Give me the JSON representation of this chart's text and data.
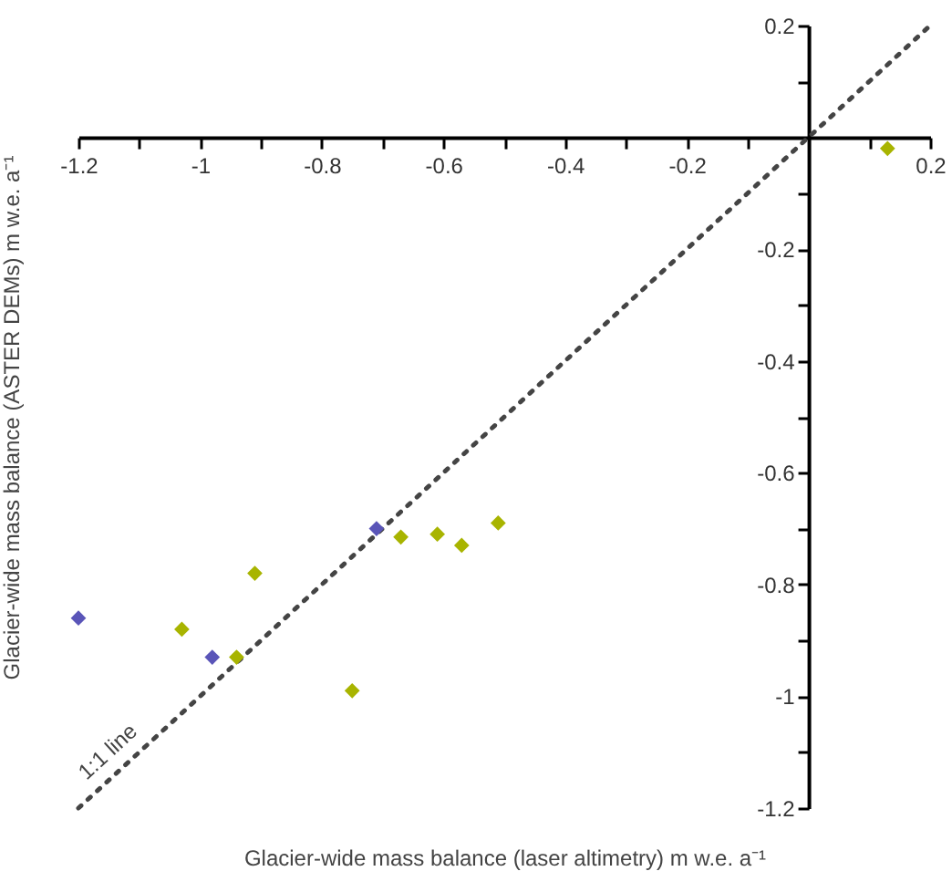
{
  "chart_data": {
    "type": "scatter",
    "xlabel": "Glacier-wide mass balance (laser altimetry) m w.e. a⁻¹",
    "ylabel": "Glacier-wide mass balance (ASTER DEMs) m w.e. a⁻¹",
    "xlim": [
      -1.2,
      0.2
    ],
    "ylim": [
      -1.2,
      0.2
    ],
    "xticks": [
      -1.2,
      {
        "value": -1.1,
        "label": null
      },
      -1,
      {
        "value": -0.9,
        "label": null
      },
      -0.8,
      {
        "value": -0.7,
        "label": null
      },
      -0.6,
      {
        "value": -0.5,
        "label": null
      },
      -0.4,
      {
        "value": -0.3,
        "label": null
      },
      -0.2,
      {
        "value": -0.1,
        "label": null
      },
      {
        "value": 0.1,
        "label": null
      },
      0.2
    ],
    "yticks": [
      0.2,
      {
        "value": 0.1,
        "label": null
      },
      {
        "value": -0.1,
        "label": null
      },
      -0.2,
      {
        "value": -0.3,
        "label": null
      },
      -0.4,
      {
        "value": -0.5,
        "label": null
      },
      -0.6,
      {
        "value": -0.7,
        "label": null
      },
      -0.8,
      {
        "value": -0.9,
        "label": null
      },
      -1,
      {
        "value": -1.1,
        "label": null
      },
      -1.2
    ],
    "marker": "diamond",
    "series": [
      {
        "type": "line",
        "color": "#444444",
        "line_style": "dotted",
        "marker": "none",
        "x": [
          -1.2,
          0.2
        ],
        "values": [
          -1.2,
          0.2
        ]
      },
      {
        "color": "#5a55b8",
        "x": [
          -1.2,
          -0.98,
          -0.71
        ],
        "values": [
          -0.86,
          -0.93,
          -0.7
        ]
      },
      {
        "color": "#a8b400",
        "x": [
          0.13,
          -1.03,
          -0.91,
          -0.94,
          -0.75,
          -0.67,
          -0.61,
          -0.57,
          -0.51
        ],
        "values": [
          -0.02,
          -0.88,
          -0.78,
          -0.93,
          -0.99,
          -0.715,
          -0.71,
          -0.73,
          -0.69
        ]
      }
    ],
    "annotations": [
      "1:1 line"
    ]
  }
}
